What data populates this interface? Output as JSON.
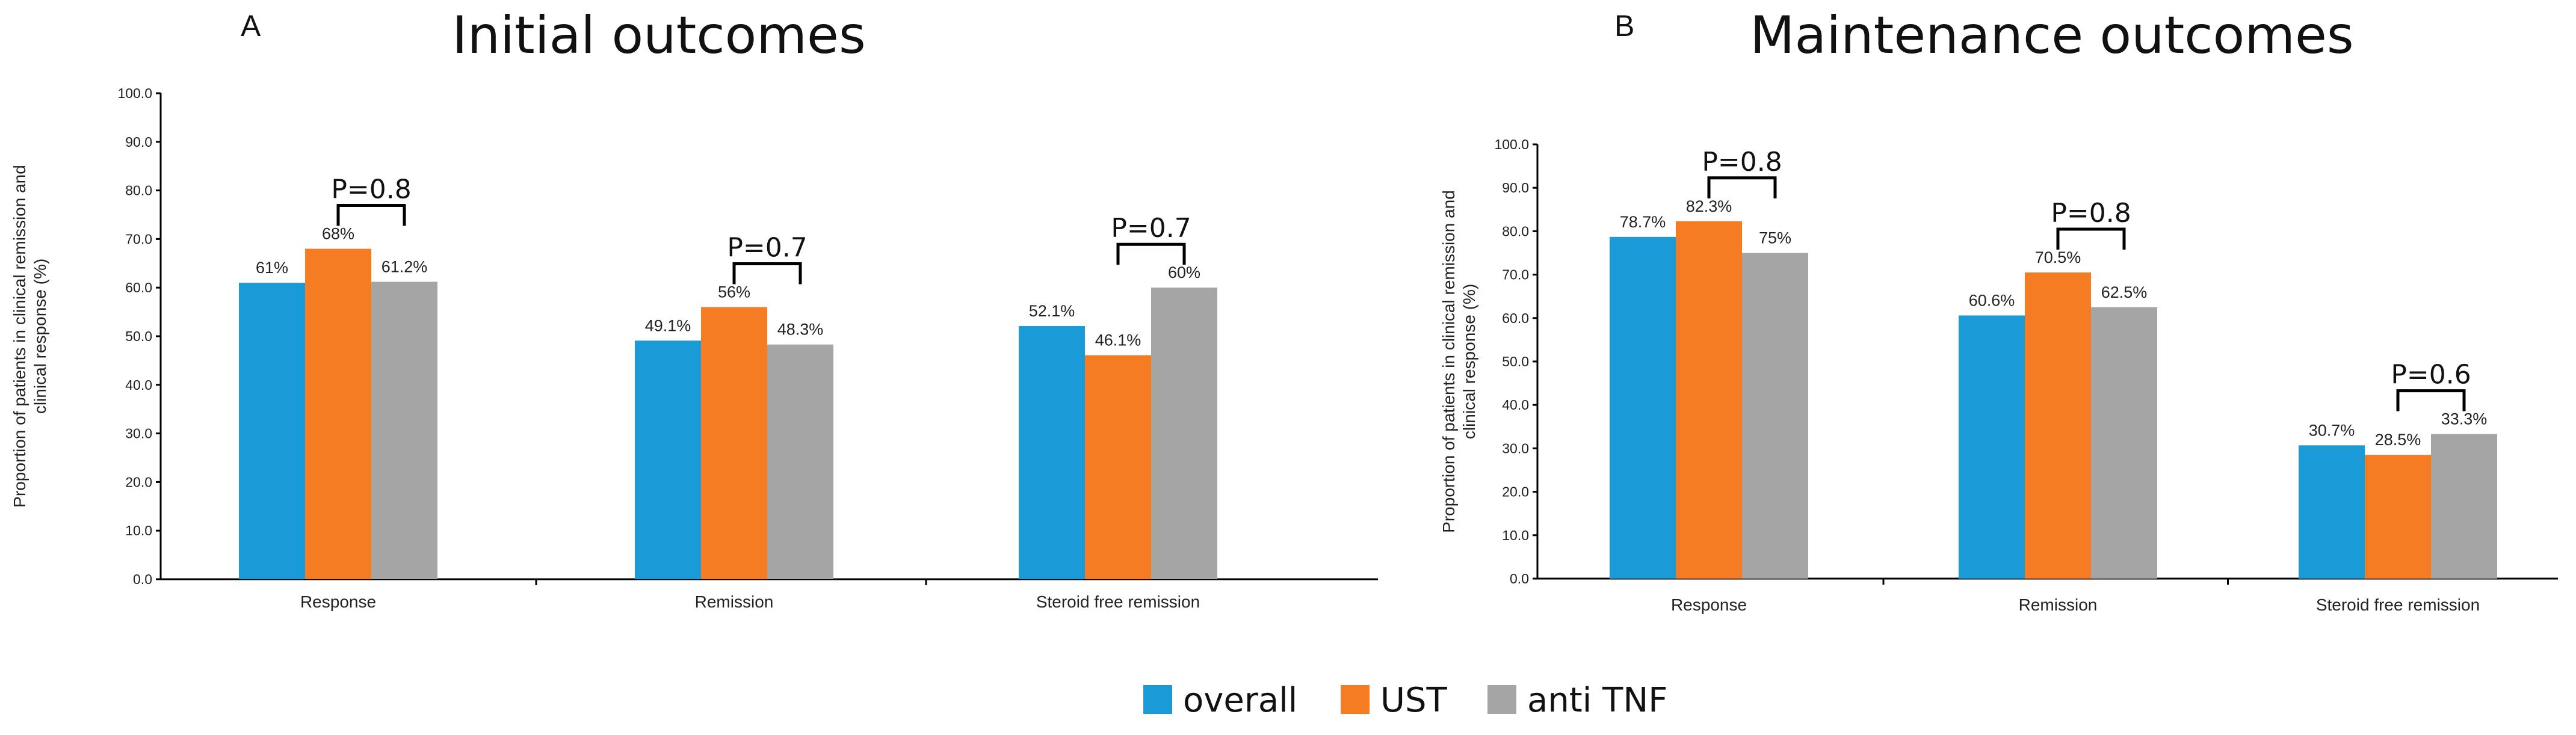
{
  "chart_data": [
    {
      "type": "bar",
      "panel": "A",
      "title": "Initial outcomes",
      "ylabel": "Proportion of patients in clinical remission and clinical response (%)",
      "xlabel": "",
      "ylim": [
        0,
        100
      ],
      "yticks": [
        "0.0",
        "10.0",
        "20.0",
        "30.0",
        "40.0",
        "50.0",
        "60.0",
        "70.0",
        "80.0",
        "90.0",
        "100.0"
      ],
      "categories": [
        "Response",
        "Remission",
        "Steroid free remission"
      ],
      "series": [
        {
          "name": "overall",
          "color": "#1a9bd7",
          "values": [
            61,
            49.1,
            52.1
          ],
          "labels": [
            "61%",
            "49.1%",
            "52.1%"
          ]
        },
        {
          "name": "UST",
          "color": "#f57c22",
          "values": [
            68,
            56,
            46.1
          ],
          "labels": [
            "68%",
            "56%",
            "46.1%"
          ]
        },
        {
          "name": "anti TNF",
          "color": "#a5a5a5",
          "values": [
            61.2,
            48.3,
            60
          ],
          "labels": [
            "61.2%",
            "48.3%",
            "60%"
          ]
        }
      ],
      "annotations": [
        {
          "text": "P=0.8",
          "category": 0,
          "from_series": 1,
          "to_series": 2
        },
        {
          "text": "P=0.7",
          "category": 1,
          "from_series": 1,
          "to_series": 2
        },
        {
          "text": "P=0.7",
          "category": 2,
          "from_series": 1,
          "to_series": 2
        }
      ]
    },
    {
      "type": "bar",
      "panel": "B",
      "title": "Maintenance outcomes",
      "ylabel": "Proportion of patients in clinical remission and clinical response (%)",
      "xlabel": "",
      "ylim": [
        0,
        100
      ],
      "yticks": [
        "0.0",
        "10.0",
        "20.0",
        "30.0",
        "40.0",
        "50.0",
        "60.0",
        "70.0",
        "80.0",
        "90.0",
        "100.0"
      ],
      "categories": [
        "Response",
        "Remission",
        "Steroid free remission"
      ],
      "series": [
        {
          "name": "overall",
          "color": "#1a9bd7",
          "values": [
            78.7,
            60.6,
            30.7
          ],
          "labels": [
            "78.7%",
            "60.6%",
            "30.7%"
          ]
        },
        {
          "name": "UST",
          "color": "#f57c22",
          "values": [
            82.3,
            70.5,
            28.5
          ],
          "labels": [
            "82.3%",
            "70.5%",
            "28.5%"
          ]
        },
        {
          "name": "anti TNF",
          "color": "#a5a5a5",
          "values": [
            75,
            62.5,
            33.3
          ],
          "labels": [
            "75%",
            "62.5%",
            "33.3%"
          ]
        }
      ],
      "annotations": [
        {
          "text": "P=0.8",
          "category": 0,
          "from_series": 1,
          "to_series": 2
        },
        {
          "text": "P=0.8",
          "category": 1,
          "from_series": 1,
          "to_series": 2
        },
        {
          "text": "P=0.6",
          "category": 2,
          "from_series": 1,
          "to_series": 2
        }
      ]
    }
  ],
  "legend": {
    "placement": "bottom-center",
    "items": [
      {
        "label": "overall",
        "color": "#1a9bd7"
      },
      {
        "label": "UST",
        "color": "#f57c22"
      },
      {
        "label": "anti TNF",
        "color": "#a5a5a5"
      }
    ]
  }
}
